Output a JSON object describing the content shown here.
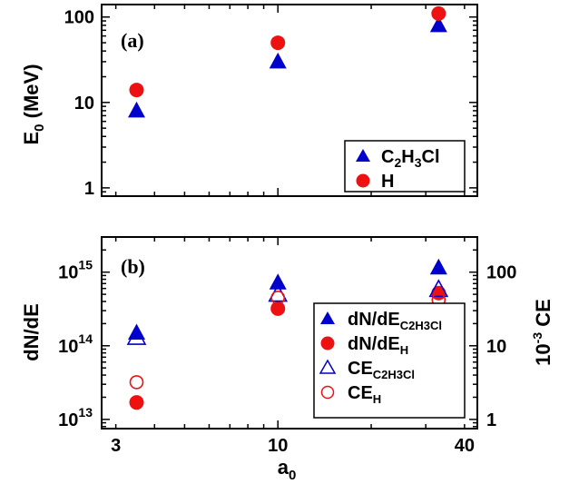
{
  "chart_data": [
    {
      "type": "scatter",
      "panel_label": "(a)",
      "ylabel_base": "E",
      "ylabel_sub": "0",
      "ylabel_rest": " (MeV)",
      "xscale": "log",
      "yscale": "log",
      "xlim": [
        2.7,
        44
      ],
      "ylim": [
        0.8,
        140
      ],
      "yticks": [
        1,
        10,
        100
      ],
      "ytick_labels": [
        "1",
        "10",
        "100"
      ],
      "legend_position": "lower-right",
      "series": [
        {
          "name": "C2H3Cl",
          "name_base": "C",
          "name_sub1": "2",
          "name_mid": "H",
          "name_sub2": "3",
          "name_rest": "Cl",
          "marker": "triangle-filled",
          "color": "#0000cc",
          "x": [
            3.5,
            10,
            33
          ],
          "y": [
            8,
            30,
            80
          ]
        },
        {
          "name": "H",
          "marker": "circle-filled",
          "color": "#ee1111",
          "x": [
            3.5,
            10,
            33
          ],
          "y": [
            14,
            50,
            110
          ]
        }
      ]
    },
    {
      "type": "scatter",
      "panel_label": "(b)",
      "ylabel": "dN/dE",
      "y2label_base": "10",
      "y2label_sup": "-3",
      "y2label_rest": " CE",
      "xlabel_base": "a",
      "xlabel_sub": "0",
      "xscale": "log",
      "yscale": "log",
      "y2scale": "log",
      "xlim": [
        2.7,
        44
      ],
      "ylim": [
        7500000000000.0,
        3000000000000000.0
      ],
      "y2lim": [
        0.75,
        300
      ],
      "xticks": [
        3,
        10,
        40
      ],
      "xtick_labels": [
        "3",
        "10",
        "40"
      ],
      "yticks": [
        10000000000000.0,
        100000000000000.0,
        1000000000000000.0
      ],
      "ytick_bases": [
        "10",
        "10",
        "10"
      ],
      "ytick_exps": [
        "13",
        "14",
        "15"
      ],
      "y2ticks": [
        1,
        10,
        100
      ],
      "y2tick_labels": [
        "1",
        "10",
        "100"
      ],
      "legend_position": "lower-right",
      "series": [
        {
          "name": "dN/dE_C2H3Cl",
          "legend_base": "dN/dE",
          "legend_sub": "C2H3Cl",
          "marker": "triangle-filled",
          "color": "#0000cc",
          "axis": "left",
          "x": [
            3.5,
            10,
            33
          ],
          "y": [
            150000000000000.0,
            720000000000000.0,
            1150000000000000.0
          ]
        },
        {
          "name": "dN/dE_H",
          "legend_base": "dN/dE",
          "legend_sub": "H",
          "marker": "circle-filled",
          "color": "#ee1111",
          "axis": "left",
          "x": [
            3.5,
            10,
            33
          ],
          "y": [
            17000000000000.0,
            320000000000000.0,
            520000000000000.0
          ]
        },
        {
          "name": "CE_C2H3Cl",
          "legend_base": "CE",
          "legend_sub": "C2H3Cl",
          "marker": "triangle-open",
          "color": "#0000cc",
          "axis": "right",
          "x": [
            3.5,
            10,
            33
          ],
          "y": [
            13,
            50,
            58
          ]
        },
        {
          "name": "CE_H",
          "legend_base": "CE",
          "legend_sub": "H",
          "marker": "circle-open",
          "color": "#ee1111",
          "axis": "right",
          "x": [
            3.5,
            10,
            33
          ],
          "y": [
            3.2,
            45,
            42
          ]
        }
      ]
    }
  ]
}
